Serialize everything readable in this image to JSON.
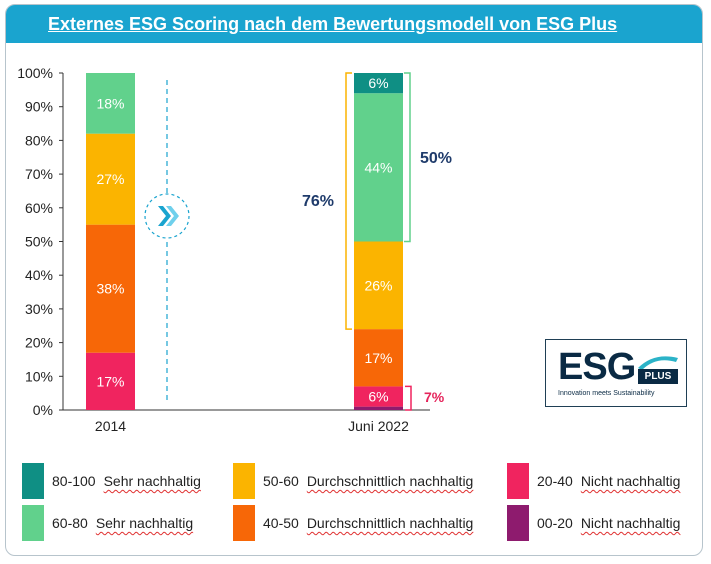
{
  "title": "Externes ESG Scoring nach dem Bewertungsmodell von ESG Plus",
  "logo": {
    "main": "ESG",
    "sub": "PLUS",
    "tagline": "Innovation meets Sustainability"
  },
  "chart_data": {
    "type": "stacked-bar",
    "categories": [
      "2014",
      "Juni 2022"
    ],
    "yticks": [
      "0%",
      "10%",
      "20%",
      "30%",
      "40%",
      "50%",
      "60%",
      "70%",
      "80%",
      "90%",
      "100%"
    ],
    "ylim": [
      0,
      100
    ],
    "series": [
      {
        "name": "00-20 Nicht nachhaltig",
        "color": "#8e1b6e",
        "values": [
          0,
          1
        ],
        "labels": [
          "",
          ""
        ]
      },
      {
        "name": "20-40 Nicht nachhaltig",
        "color": "#f0245f",
        "values": [
          17,
          6
        ],
        "labels": [
          "17%",
          "6%"
        ]
      },
      {
        "name": "40-50 Durchschnittlich nachhaltig",
        "color": "#f76707",
        "values": [
          38,
          17
        ],
        "labels": [
          "38%",
          "17%"
        ]
      },
      {
        "name": "50-60 Durchschnittlich nachhaltig",
        "color": "#fbb400",
        "values": [
          27,
          26
        ],
        "labels": [
          "27%",
          "26%"
        ]
      },
      {
        "name": "60-80 Sehr nachhaltig",
        "color": "#61d18c",
        "values": [
          18,
          44
        ],
        "labels": [
          "18%",
          "44%"
        ]
      },
      {
        "name": "80-100 Sehr nachhaltig",
        "color": "#0f8f84",
        "values": [
          0,
          6
        ],
        "labels": [
          "",
          "6%"
        ]
      }
    ],
    "annotations": {
      "bracket_76": {
        "text": "76%",
        "from": 24,
        "to": 100,
        "color": "#fbb400",
        "text_color": "#1f3b6b"
      },
      "bracket_50": {
        "text": "50%",
        "from": 50,
        "to": 100,
        "color": "#61d18c",
        "text_color": "#1f3b6b"
      },
      "bracket_7": {
        "text": "7%",
        "from": 0,
        "to": 7,
        "color": "#f0245f",
        "text_color": "#e5245b"
      }
    }
  },
  "legend": [
    {
      "range": "80-100",
      "label": "Sehr nachhaltig",
      "color": "#0f8f84"
    },
    {
      "range": "60-80",
      "label": "Sehr nachhaltig",
      "color": "#61d18c"
    },
    {
      "range": "50-60",
      "label": "Durchschnittlich nachhaltig",
      "color": "#fbb400"
    },
    {
      "range": "40-50",
      "label": "Durchschnittlich nachhaltig",
      "color": "#f76707"
    },
    {
      "range": "20-40",
      "label": "Nicht nachhaltig",
      "color": "#f0245f"
    },
    {
      "range": "00-20",
      "label": "Nicht nachhaltig",
      "color": "#8e1b6e"
    }
  ]
}
